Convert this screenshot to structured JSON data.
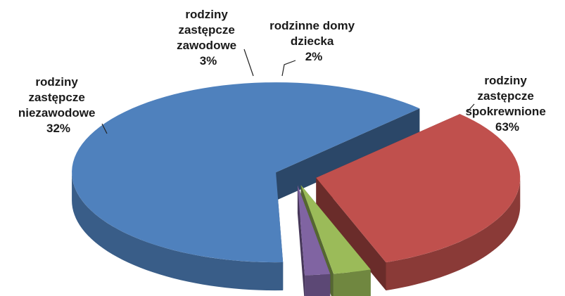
{
  "chart_data": {
    "type": "pie",
    "style": "3d-exploded",
    "title": "",
    "slices": [
      {
        "label_lines": [
          "rodziny",
          "zastępcze",
          "spokrewnione"
        ],
        "percent_label": "63%",
        "value": 63,
        "color": "#4F81BD"
      },
      {
        "label_lines": [
          "rodziny",
          "zastępcze",
          "niezawodowe"
        ],
        "percent_label": "32%",
        "value": 32,
        "color": "#C0504D"
      },
      {
        "label_lines": [
          "rodziny",
          "zastępcze",
          "zawodowe"
        ],
        "percent_label": "3%",
        "value": 3,
        "color": "#9BBB59"
      },
      {
        "label_lines": [
          "rodzinne domy",
          "dziecka"
        ],
        "percent_label": "2%",
        "value": 2,
        "color": "#8064A2"
      }
    ]
  }
}
